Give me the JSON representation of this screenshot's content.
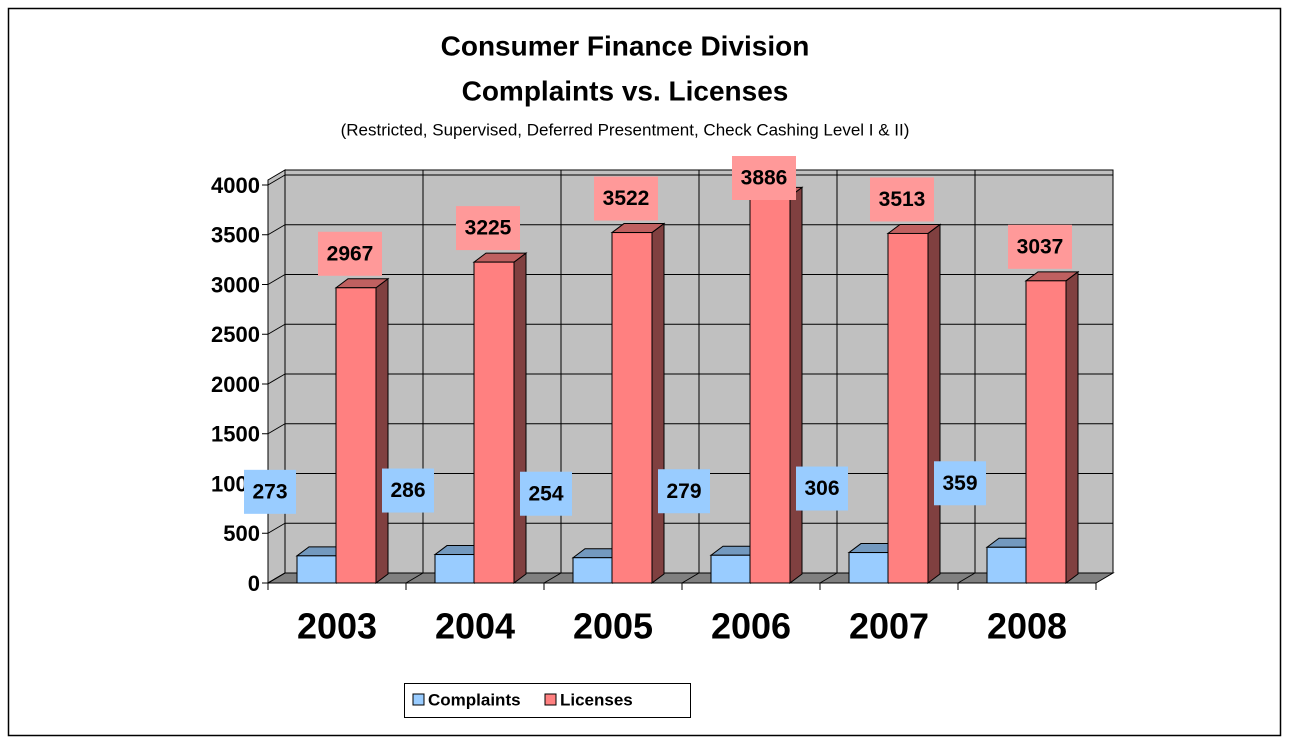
{
  "chart_data": {
    "type": "bar3d",
    "title": [
      "Consumer Finance Division",
      "Complaints vs. Licenses"
    ],
    "subtitle": "(Restricted, Supervised, Deferred Presentment, Check Cashing Level I & II)",
    "categories": [
      "2003",
      "2004",
      "2005",
      "2006",
      "2007",
      "2008"
    ],
    "series": [
      {
        "name": "Complaints",
        "color": "#99ccff",
        "values": [
          273,
          286,
          254,
          279,
          306,
          359
        ]
      },
      {
        "name": "Licenses",
        "color": "#ff8080",
        "values": [
          2967,
          3225,
          3522,
          3886,
          3513,
          3037
        ]
      }
    ],
    "ylim": [
      0,
      4000
    ],
    "yticks": [
      0,
      500,
      1000,
      1500,
      2000,
      2500,
      3000,
      3500,
      4000
    ],
    "grid": true,
    "legend": "bottom"
  }
}
